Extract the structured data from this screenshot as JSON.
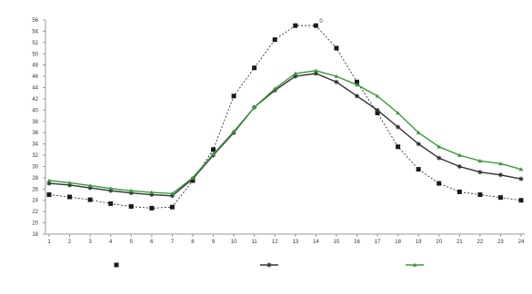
{
  "chart_data": {
    "type": "line",
    "title": "",
    "xlabel": "",
    "ylabel": "",
    "categories": [
      "1",
      "2",
      "3",
      "4",
      "5",
      "6",
      "7",
      "8",
      "9",
      "10",
      "11",
      "12",
      "13",
      "14",
      "15",
      "16",
      "17",
      "18",
      "19",
      "20",
      "21",
      "22",
      "23",
      "24"
    ],
    "ylim": [
      18,
      56
    ],
    "yticks": [
      18,
      20,
      22,
      24,
      26,
      28,
      30,
      32,
      34,
      36,
      38,
      40,
      42,
      44,
      46,
      48,
      50,
      52,
      54,
      56
    ],
    "grid": false,
    "legend_position": "bottom",
    "series": [
      {
        "name": "",
        "color": "#1a1a1a",
        "dash": "2,2",
        "marker": "square",
        "marker_size": 5,
        "values": [
          25.0,
          24.6,
          24.1,
          23.4,
          22.9,
          22.6,
          22.8,
          27.5,
          33.0,
          42.5,
          47.5,
          52.5,
          55.0,
          55.0,
          51.0,
          45.0,
          39.5,
          33.5,
          29.5,
          27.0,
          25.5,
          25.0,
          24.5,
          24.0
        ]
      },
      {
        "name": "",
        "color": "#333333",
        "dash": "",
        "marker": "star",
        "marker_size": 4,
        "values": [
          27.0,
          26.7,
          26.2,
          25.7,
          25.3,
          25.0,
          24.8,
          27.8,
          32.0,
          36.0,
          40.5,
          43.5,
          46.0,
          46.5,
          45.0,
          42.5,
          40.0,
          37.0,
          34.0,
          31.5,
          30.0,
          29.0,
          28.5,
          27.8
        ]
      },
      {
        "name": "",
        "color": "#3a9a3a",
        "dash": "",
        "marker": "triangle",
        "marker_size": 4,
        "values": [
          27.5,
          27.1,
          26.6,
          26.1,
          25.7,
          25.4,
          25.2,
          28.0,
          32.2,
          36.2,
          40.5,
          43.8,
          46.5,
          47.0,
          46.0,
          44.5,
          42.5,
          39.5,
          36.0,
          33.5,
          32.0,
          31.0,
          30.5,
          29.5
        ]
      }
    ],
    "annotations": [
      {
        "text": "0",
        "series": 0,
        "index": 13
      }
    ]
  }
}
